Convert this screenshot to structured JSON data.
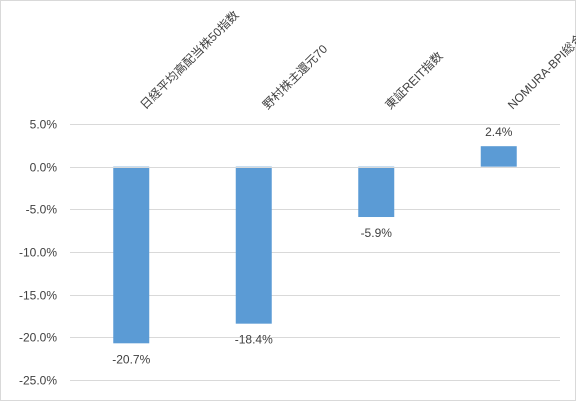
{
  "chart_data": {
    "type": "bar",
    "title": "",
    "xlabel": "",
    "ylabel": "",
    "categories": [
      "日経平均高配当株50指数",
      "野村株主還元70",
      "東証REIT指数",
      "NOMURA-BPI総合"
    ],
    "values": [
      -20.7,
      -18.4,
      -5.9,
      2.4
    ],
    "data_labels": [
      "-20.7%",
      "-18.4%",
      "-5.9%",
      "2.4%"
    ],
    "ylim": [
      -25,
      5
    ],
    "y_ticks": [
      5,
      0,
      -5,
      -10,
      -15,
      -20,
      -25
    ],
    "y_tick_labels": [
      "5.0%",
      "0.0%",
      "-5.0%",
      "-10.0%",
      "-15.0%",
      "-20.0%",
      "-25.0%"
    ],
    "grid": true,
    "legend": "none",
    "bar_color": "#5b9bd5",
    "grid_color": "#d9d9d9",
    "label_color": "#404040"
  }
}
